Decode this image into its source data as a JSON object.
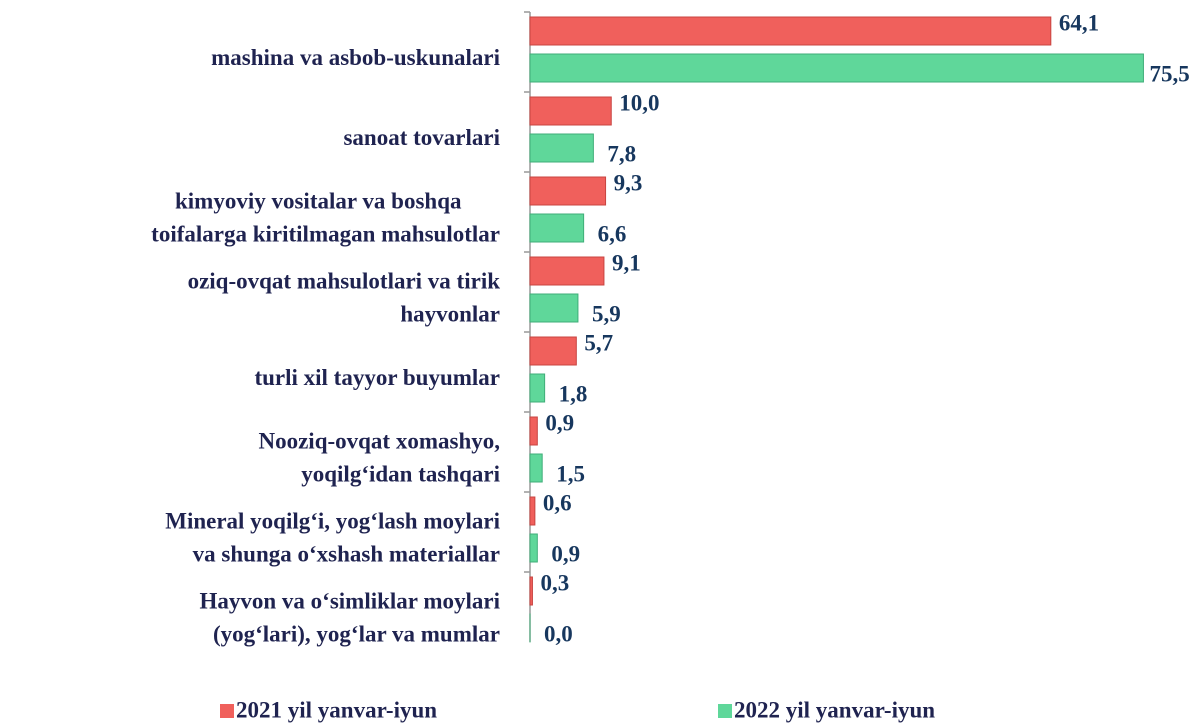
{
  "chart_data": {
    "type": "bar",
    "orientation": "horizontal",
    "categories": [
      "mashina va asbob-uskunalari",
      "sanoat tovarlari",
      "kimyoviy vositalar va boshqa\ntoifalarga kiritilmagan mahsulotlar",
      "oziq-ovqat mahsulotlari va tirik\nhayvonlar",
      "turli xil tayyor buyumlar",
      "Nooziq-ovqat xomashyo,\nyoqilg‘idan tashqari",
      "Mineral yoqilg‘i, yog‘lash moylari\nva shunga o‘xshash materiallar",
      "Hayvon va o‘simliklar moylari\n(yog‘lari), yog‘lar va mumlar"
    ],
    "series": [
      {
        "name": "2021 yil yanvar-iyun",
        "color": "#f0605c",
        "values": [
          64.1,
          10.0,
          9.3,
          9.1,
          5.7,
          0.9,
          0.6,
          0.3
        ],
        "value_labels": [
          "64,1",
          "10,0",
          "9,3",
          "9,1",
          "5,7",
          "0,9",
          "0,6",
          "0,3"
        ]
      },
      {
        "name": "2022 yil yanvar-iyun",
        "color": "#5fd79a",
        "values": [
          75.5,
          7.8,
          6.6,
          5.9,
          1.8,
          1.5,
          0.9,
          0.0
        ],
        "value_labels": [
          "75,5",
          "7,8",
          "6,6",
          "5,9",
          "1,8",
          "1,5",
          "0,9",
          "0,0"
        ]
      }
    ],
    "xlim": [
      0,
      80
    ],
    "legend": "bottom"
  }
}
